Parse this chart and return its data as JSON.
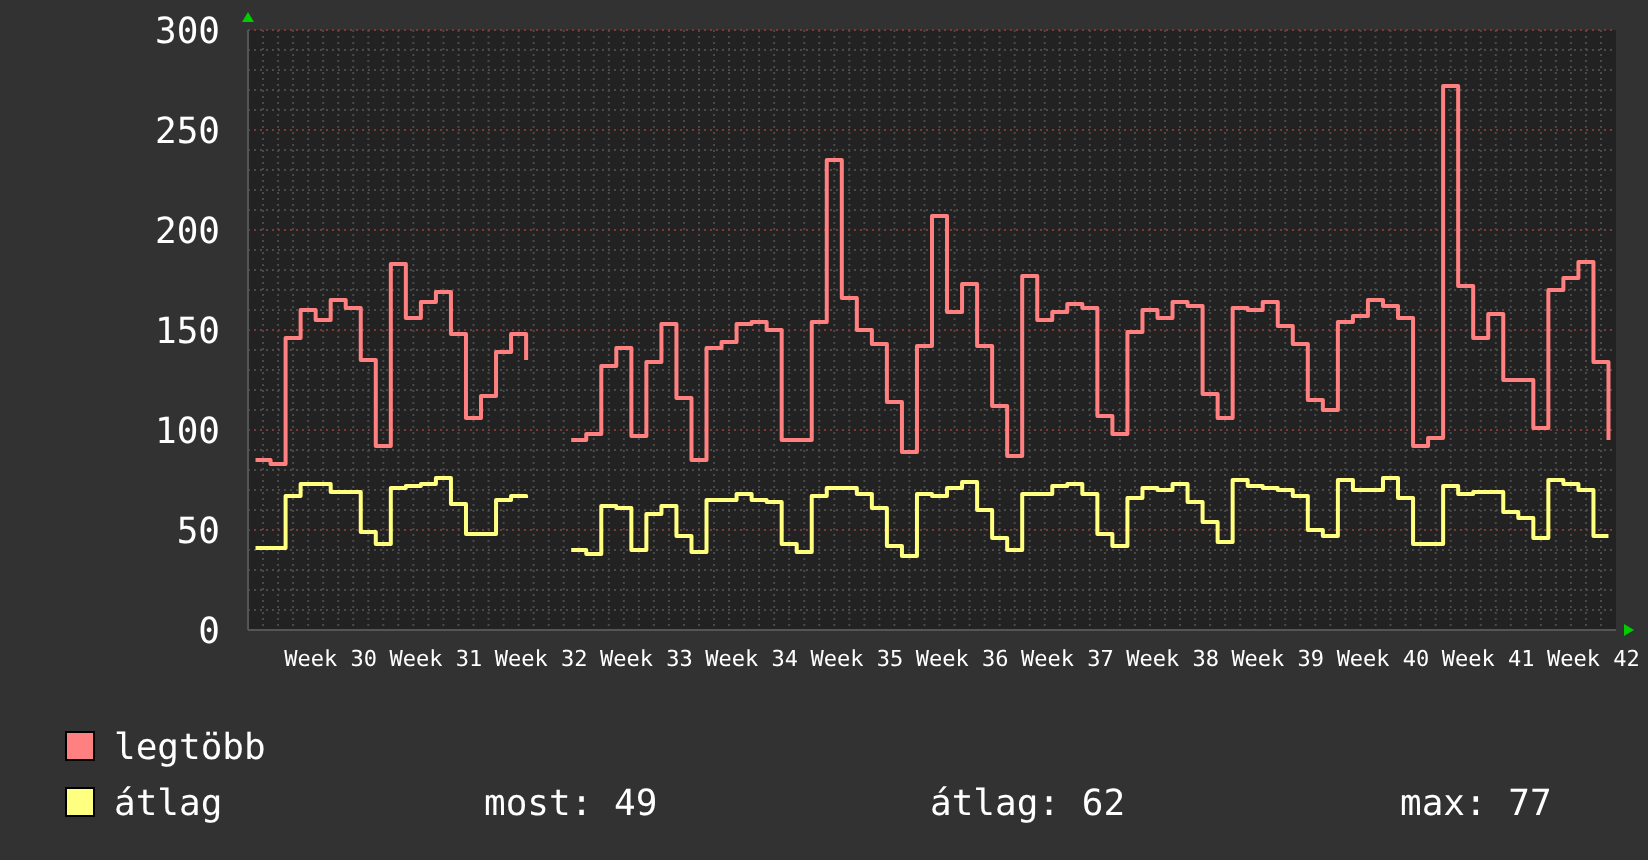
{
  "chart_data": {
    "type": "step",
    "ylim": [
      0,
      300
    ],
    "yticks": [
      0,
      50,
      100,
      150,
      200,
      250,
      300
    ],
    "categories": [
      null,
      null,
      null,
      null,
      null,
      "Week 30",
      null,
      null,
      null,
      null,
      null,
      null,
      "Week 31",
      null,
      null,
      null,
      null,
      null,
      null,
      "Week 32",
      null,
      null,
      null,
      null,
      null,
      null,
      "Week 33",
      null,
      null,
      null,
      null,
      null,
      null,
      "Week 34",
      null,
      null,
      null,
      null,
      null,
      null,
      "Week 35",
      null,
      null,
      null,
      null,
      null,
      null,
      "Week 36",
      null,
      null,
      null,
      null,
      null,
      null,
      "Week 37",
      null,
      null,
      null,
      null,
      null,
      null,
      "Week 38",
      null,
      null,
      null,
      null,
      null,
      null,
      "Week 39",
      null,
      null,
      null,
      null,
      null,
      null,
      "Week 40",
      null,
      null,
      null,
      null,
      null,
      null,
      "Week 41",
      null,
      null,
      null,
      null,
      null,
      null,
      "Week 42",
      null
    ],
    "series": [
      {
        "name": "legtöbb",
        "color": "#ff8080",
        "values": [
          85,
          83,
          146,
          160,
          155,
          165,
          161,
          135,
          92,
          183,
          156,
          164,
          169,
          148,
          106,
          117,
          139,
          148,
          135,
          null,
          null,
          95,
          98,
          132,
          141,
          97,
          134,
          153,
          116,
          85,
          141,
          144,
          153,
          154,
          150,
          95,
          95,
          154,
          235,
          166,
          150,
          143,
          114,
          89,
          142,
          207,
          159,
          173,
          142,
          112,
          87,
          177,
          155,
          159,
          163,
          161,
          107,
          98,
          149,
          160,
          156,
          164,
          162,
          118,
          106,
          161,
          160,
          164,
          152,
          143,
          115,
          110,
          154,
          157,
          165,
          162,
          156,
          92,
          96,
          272,
          172,
          146,
          158,
          125,
          125,
          101,
          170,
          176,
          184,
          134,
          95
        ]
      },
      {
        "name": "átlag",
        "color": "#ffff80",
        "values": [
          41,
          41,
          67,
          73,
          73,
          69,
          69,
          49,
          43,
          71,
          72,
          73,
          76,
          63,
          48,
          48,
          65,
          67,
          66,
          null,
          null,
          40,
          38,
          62,
          61,
          40,
          58,
          62,
          47,
          39,
          65,
          65,
          68,
          65,
          64,
          43,
          39,
          67,
          71,
          71,
          68,
          61,
          42,
          37,
          68,
          67,
          71,
          74,
          60,
          46,
          40,
          68,
          68,
          72,
          73,
          68,
          48,
          42,
          66,
          71,
          70,
          73,
          64,
          54,
          44,
          75,
          72,
          71,
          70,
          67,
          50,
          47,
          75,
          70,
          70,
          76,
          66,
          43,
          43,
          72,
          68,
          69,
          69,
          59,
          56,
          46,
          75,
          73,
          70,
          47,
          47
        ]
      }
    ],
    "grid": true,
    "legend": "bottom",
    "annotations": [
      "most: 49",
      "átlag: 62",
      "max: 77"
    ]
  }
}
